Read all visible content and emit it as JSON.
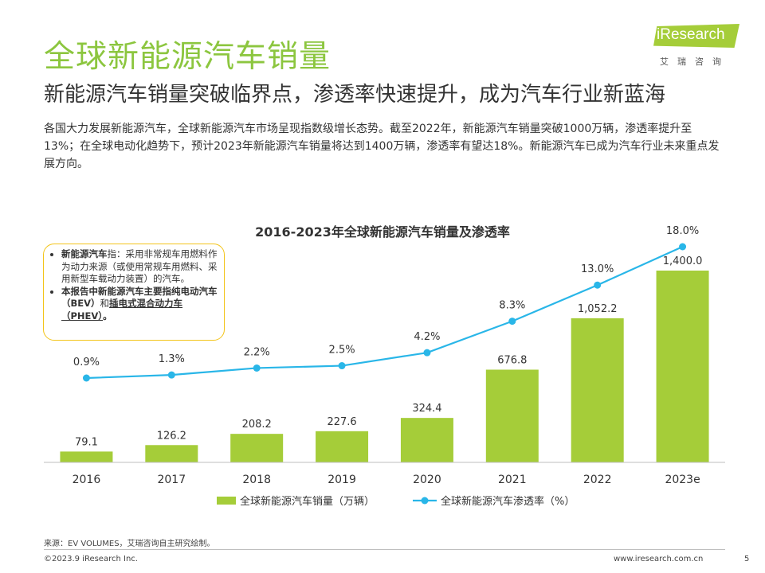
{
  "page": {
    "title": "全球新能源汽车销量",
    "subtitle": "新能源汽车销量突破临界点，渗透率快速提升，成为汽车行业新蓝海",
    "description": "各国大力发展新能源汽车，全球新能源汽车市场呈现指数级增长态势。截至2022年，新能源汽车销量突破1000万辆，渗透率提升至13%；在全球电动化趋势下，预计2023年新能源汽车销量将达到1400万辆，渗透率有望达18%。新能源汽车已成为汽车行业未来重点发展方向。"
  },
  "logo": {
    "brand": "iResearch",
    "sub": "艾瑞咨询"
  },
  "note": {
    "item1_bold": "新能源汽车",
    "item1_text": "指：采用非常规车用燃料作为动力来源（或使用常规车用燃料、采用新型车载动力装置）的汽车。",
    "item2_bold1": "本报告中新能源汽车主要指纯电动汽车（BEV）",
    "item2_mid": "和",
    "item2_bold2": "插电式混合动力车（PHEV）",
    "item2_end": "。"
  },
  "chart_data": {
    "type": "bar",
    "title": "2016-2023年全球新能源汽车销量及渗透率",
    "categories": [
      "2016",
      "2017",
      "2018",
      "2019",
      "2020",
      "2021",
      "2022",
      "2023e"
    ],
    "series": [
      {
        "name": "全球新能源汽车销量（万辆）",
        "type": "bar",
        "values": [
          79.1,
          126.2,
          208.2,
          227.6,
          324.4,
          676.8,
          1052.2,
          1400.0
        ],
        "labels": [
          "79.1",
          "126.2",
          "208.2",
          "227.6",
          "324.4",
          "676.8",
          "1,052.2",
          "1,400.0"
        ],
        "color": "#a5cd39"
      },
      {
        "name": "全球新能源汽车渗透率（%）",
        "type": "line",
        "values": [
          0.9,
          1.3,
          2.2,
          2.5,
          4.2,
          8.3,
          13.0,
          18.0
        ],
        "labels": [
          "0.9%",
          "1.3%",
          "2.2%",
          "2.5%",
          "4.2%",
          "8.3%",
          "13.0%",
          "18.0%"
        ],
        "color": "#29b6e8"
      }
    ],
    "legend_position": "bottom",
    "grid": false
  },
  "footer": {
    "source": "来源：EV VOLUMES，艾瑞咨询自主研究绘制。",
    "copyright": "©2023.9 iResearch Inc.",
    "url": "www.iresearch.com.cn",
    "page": "5"
  }
}
